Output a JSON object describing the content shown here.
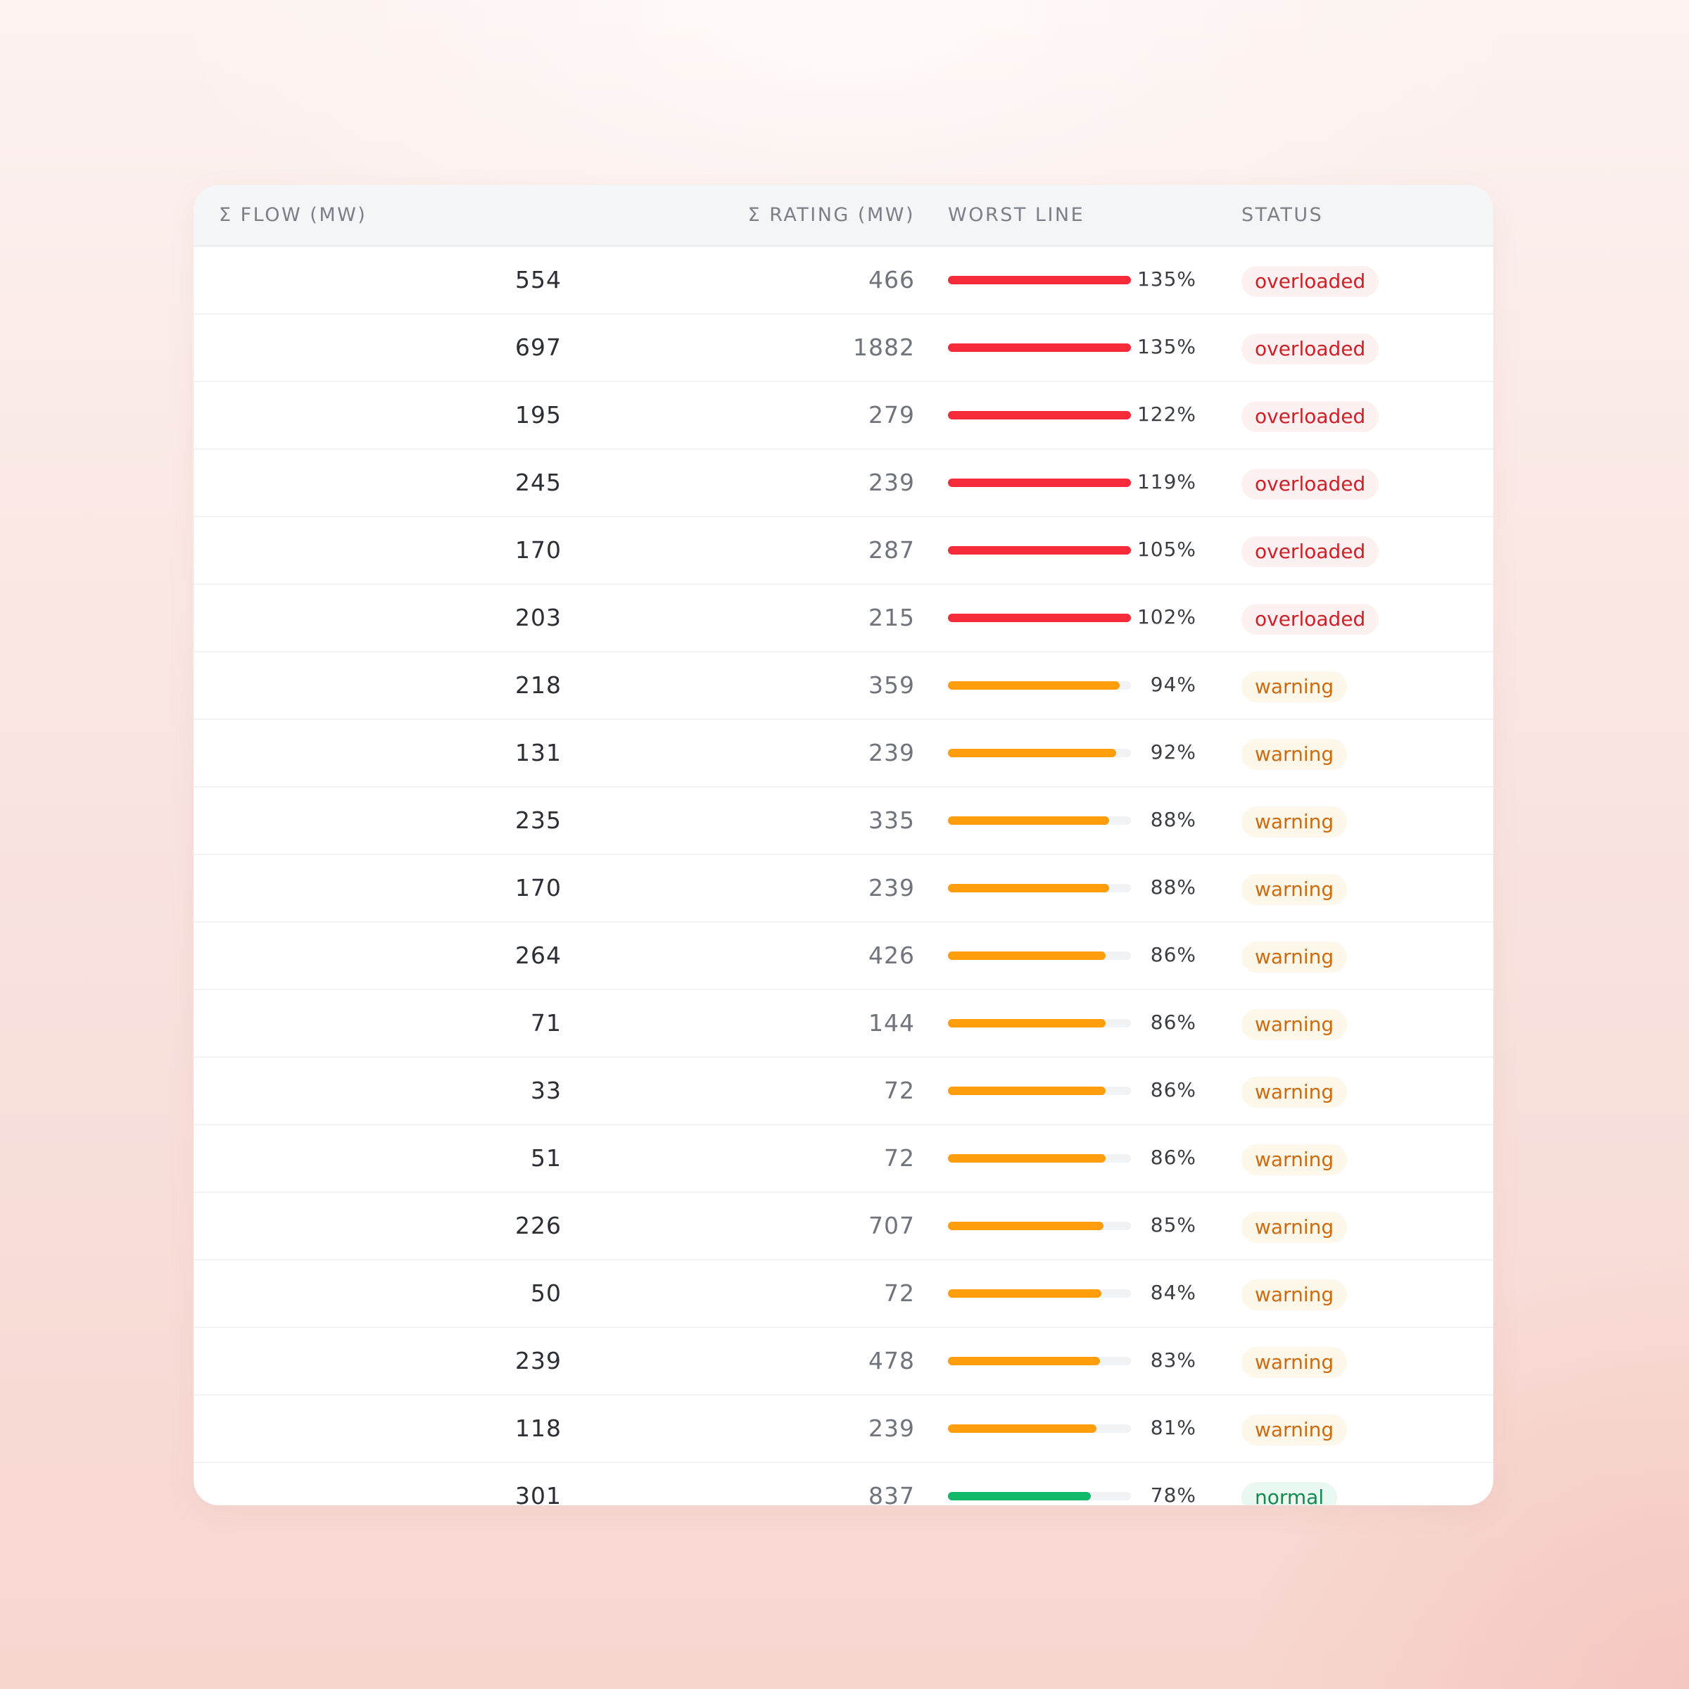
{
  "colors": {
    "overloaded_bar": "#f72a3a",
    "warning_bar": "#ff9d0c",
    "normal_bar": "#12b86a",
    "track": "#f1f2f4"
  },
  "table": {
    "headers": {
      "flow": "Σ FLOW (MW)",
      "rating": "Σ RATING (MW)",
      "worst_line": "WORST LINE",
      "status": "STATUS"
    },
    "rows": [
      {
        "flow": "554",
        "rating": "466",
        "worst_pct": 135,
        "worst_label": "135%",
        "status": "overloaded"
      },
      {
        "flow": "697",
        "rating": "1882",
        "worst_pct": 135,
        "worst_label": "135%",
        "status": "overloaded"
      },
      {
        "flow": "195",
        "rating": "279",
        "worst_pct": 122,
        "worst_label": "122%",
        "status": "overloaded"
      },
      {
        "flow": "245",
        "rating": "239",
        "worst_pct": 119,
        "worst_label": "119%",
        "status": "overloaded"
      },
      {
        "flow": "170",
        "rating": "287",
        "worst_pct": 105,
        "worst_label": "105%",
        "status": "overloaded"
      },
      {
        "flow": "203",
        "rating": "215",
        "worst_pct": 102,
        "worst_label": "102%",
        "status": "overloaded"
      },
      {
        "flow": "218",
        "rating": "359",
        "worst_pct": 94,
        "worst_label": "94%",
        "status": "warning"
      },
      {
        "flow": "131",
        "rating": "239",
        "worst_pct": 92,
        "worst_label": "92%",
        "status": "warning"
      },
      {
        "flow": "235",
        "rating": "335",
        "worst_pct": 88,
        "worst_label": "88%",
        "status": "warning"
      },
      {
        "flow": "170",
        "rating": "239",
        "worst_pct": 88,
        "worst_label": "88%",
        "status": "warning"
      },
      {
        "flow": "264",
        "rating": "426",
        "worst_pct": 86,
        "worst_label": "86%",
        "status": "warning"
      },
      {
        "flow": "71",
        "rating": "144",
        "worst_pct": 86,
        "worst_label": "86%",
        "status": "warning"
      },
      {
        "flow": "33",
        "rating": "72",
        "worst_pct": 86,
        "worst_label": "86%",
        "status": "warning"
      },
      {
        "flow": "51",
        "rating": "72",
        "worst_pct": 86,
        "worst_label": "86%",
        "status": "warning"
      },
      {
        "flow": "226",
        "rating": "707",
        "worst_pct": 85,
        "worst_label": "85%",
        "status": "warning"
      },
      {
        "flow": "50",
        "rating": "72",
        "worst_pct": 84,
        "worst_label": "84%",
        "status": "warning"
      },
      {
        "flow": "239",
        "rating": "478",
        "worst_pct": 83,
        "worst_label": "83%",
        "status": "warning"
      },
      {
        "flow": "118",
        "rating": "239",
        "worst_pct": 81,
        "worst_label": "81%",
        "status": "warning"
      },
      {
        "flow": "301",
        "rating": "837",
        "worst_pct": 78,
        "worst_label": "78%",
        "status": "normal"
      }
    ]
  }
}
